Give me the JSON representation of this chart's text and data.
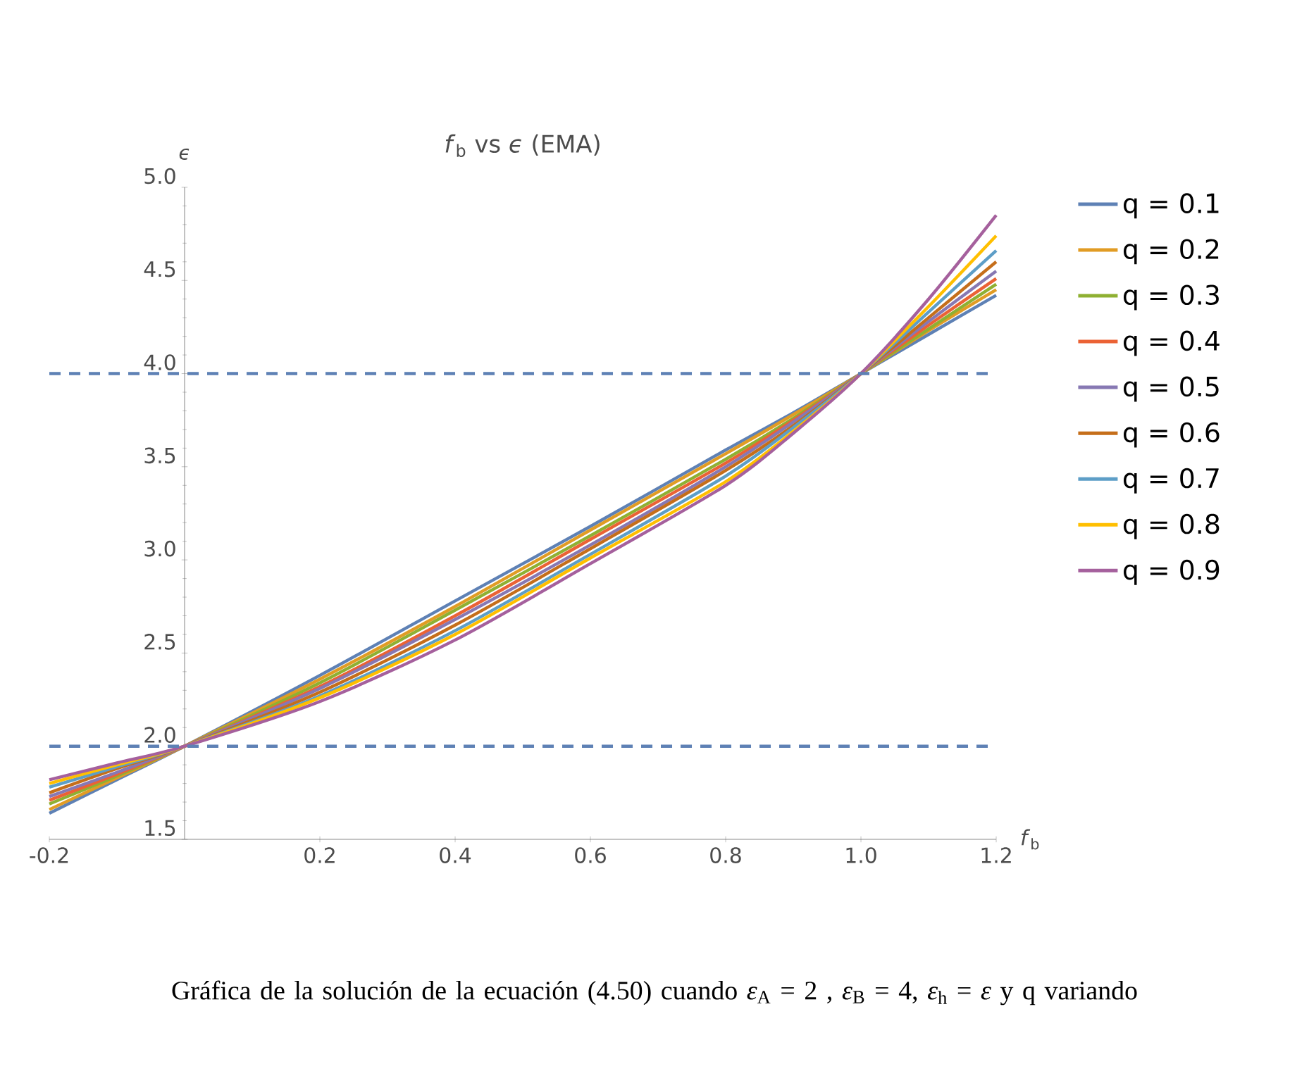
{
  "chart_data": {
    "type": "line",
    "title": "*f*$_{b}$ vs *ϵ* (EMA)",
    "xlabel": "*f*$_{b}$",
    "ylabel": "*ϵ*",
    "x": [
      -0.2,
      -0.1,
      0,
      0.2,
      0.4,
      0.6,
      0.8,
      0.9,
      1.0,
      1.1,
      1.2
    ],
    "series": [
      {
        "name": "q = 0.1",
        "color": "#5e81b5",
        "values": [
          1.64,
          1.82,
          2,
          2.38,
          2.78,
          3.18,
          3.59,
          3.79,
          4,
          4.21,
          4.42
        ]
      },
      {
        "name": "q = 0.2",
        "color": "#e19c24",
        "values": [
          1.66,
          1.83,
          2,
          2.36,
          2.75,
          3.16,
          3.57,
          3.78,
          4,
          4.23,
          4.45
        ]
      },
      {
        "name": "q = 0.3",
        "color": "#8fb032",
        "values": [
          1.69,
          1.84,
          2,
          2.34,
          2.73,
          3.13,
          3.54,
          3.76,
          4,
          4.24,
          4.48
        ]
      },
      {
        "name": "q = 0.4",
        "color": "#eb6235",
        "values": [
          1.71,
          1.85,
          2,
          2.32,
          2.7,
          3.11,
          3.52,
          3.75,
          4,
          4.26,
          4.51
        ]
      },
      {
        "name": "q = 0.5",
        "color": "#8778b3",
        "values": [
          1.73,
          1.86,
          2,
          2.31,
          2.68,
          3.08,
          3.5,
          3.74,
          4,
          4.28,
          4.55
        ]
      },
      {
        "name": "q = 0.6",
        "color": "#c56e1a",
        "values": [
          1.75,
          1.88,
          2,
          2.29,
          2.65,
          3.06,
          3.48,
          3.72,
          4,
          4.3,
          4.6
        ]
      },
      {
        "name": "q = 0.7",
        "color": "#5d9ec7",
        "values": [
          1.78,
          1.89,
          2,
          2.27,
          2.62,
          3.03,
          3.45,
          3.71,
          4,
          4.33,
          4.66
        ]
      },
      {
        "name": "q = 0.8",
        "color": "#ffbf00",
        "values": [
          1.8,
          1.9,
          2,
          2.26,
          2.6,
          3.01,
          3.42,
          3.69,
          4,
          4.36,
          4.74
        ]
      },
      {
        "name": "q = 0.9",
        "color": "#a5609d",
        "values": [
          1.82,
          1.91,
          2,
          2.24,
          2.57,
          2.98,
          3.4,
          3.68,
          4,
          4.4,
          4.85
        ]
      }
    ],
    "xlim": [
      -0.2,
      1.2
    ],
    "ylim": [
      1.5,
      5.0
    ],
    "xticks": [
      -0.2,
      0.2,
      0.4,
      0.6,
      0.8,
      {
        "value": 1.0,
        "label": "1.0"
      },
      1.2
    ],
    "yticks": [
      1.5,
      {
        "value": 2.0,
        "label": "2.0"
      },
      2.5,
      {
        "value": 3.0,
        "label": "3.0"
      },
      3.5,
      {
        "value": 4.0,
        "label": "4.0"
      },
      4.5,
      {
        "value": 5.0,
        "label": "5.0"
      }
    ],
    "ref_lines": [
      {
        "axis": "y",
        "value": 2,
        "color": "#5e81b5",
        "line_style": "dashed"
      },
      {
        "axis": "y",
        "value": 4,
        "color": "#5e81b5",
        "line_style": "dashed"
      }
    ],
    "legend": "right",
    "grid": false,
    "marker": "none",
    "line_style": "solid",
    "annotations": [
      "Gráfica de la solución de la ecuación (4.50) cuando *ε*$_{A}$ = 2 , *ε*$_{B}$ = 4, *ε*$_{h}$ = *ε* y q variando"
    ]
  }
}
